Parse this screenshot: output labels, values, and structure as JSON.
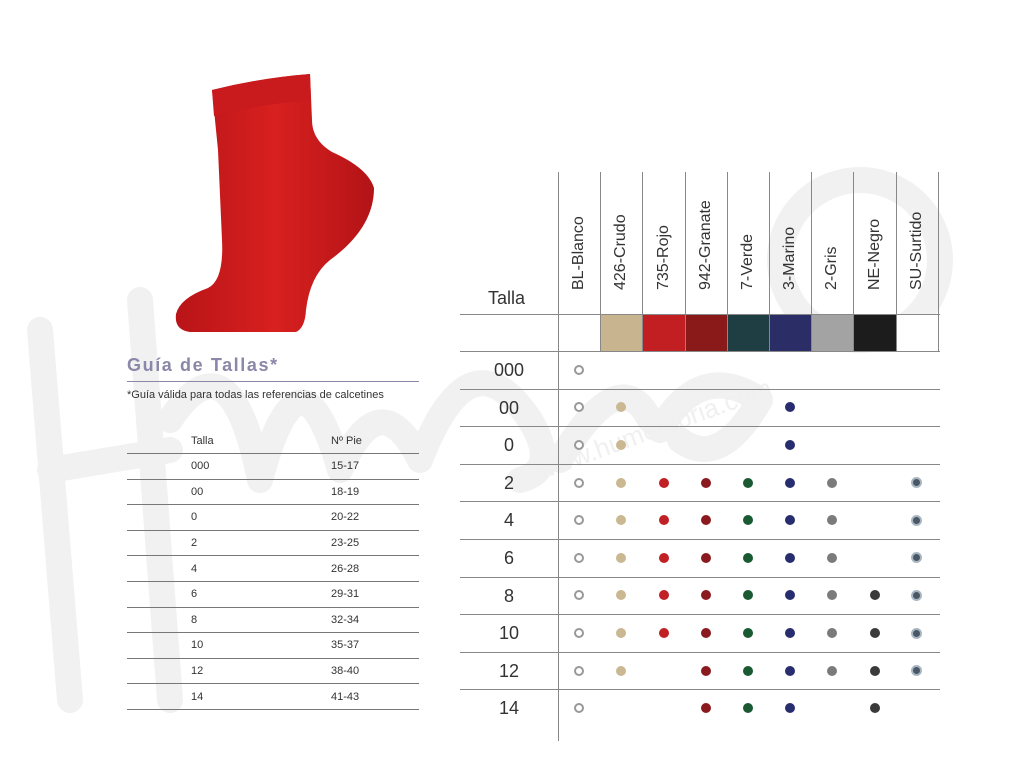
{
  "guide": {
    "title": "Guía de Tallas*",
    "note": "*Guía válida para todas las referencias de calcetines"
  },
  "size_table": {
    "headers": [
      "Talla",
      "Nº Pie"
    ],
    "rows": [
      [
        "000",
        "15-17"
      ],
      [
        "00",
        "18-19"
      ],
      [
        "0",
        "20-22"
      ],
      [
        "2",
        "23-25"
      ],
      [
        "4",
        "26-28"
      ],
      [
        "6",
        "29-31"
      ],
      [
        "8",
        "32-34"
      ],
      [
        "10",
        "35-37"
      ],
      [
        "12",
        "38-40"
      ],
      [
        "14",
        "41-43"
      ]
    ]
  },
  "color_table": {
    "talla_label": "Talla",
    "columns": [
      {
        "label": "BL-Blanco",
        "color": "#ffffff",
        "dot": "ring"
      },
      {
        "label": "426-Crudo",
        "color": "#c8b48e",
        "dot": "#c9b891"
      },
      {
        "label": "735-Rojo",
        "color": "#c11f22",
        "dot": "#c12025"
      },
      {
        "label": "942-Granate",
        "color": "#8a1a1a",
        "dot": "#8b1a1e"
      },
      {
        "label": "7-Verde",
        "color": "#1f3e44",
        "dot": "#1a5a32"
      },
      {
        "label": "3-Marino",
        "color": "#2a2d66",
        "dot": "#272d6e"
      },
      {
        "label": "2-Gris",
        "color": "#a3a3a3",
        "dot": "#7b7b7b"
      },
      {
        "label": "NE-Negro",
        "color": "#1c1c1c",
        "dot": "#3a3a3a"
      },
      {
        "label": "SU-Surtido",
        "color": "#ffffff",
        "dot": "assorted"
      }
    ],
    "rows": [
      {
        "size": "000",
        "avail": [
          1,
          0,
          0,
          0,
          0,
          0,
          0,
          0,
          0
        ]
      },
      {
        "size": "00",
        "avail": [
          1,
          1,
          0,
          0,
          0,
          1,
          0,
          0,
          0
        ]
      },
      {
        "size": "0",
        "avail": [
          1,
          1,
          0,
          0,
          0,
          1,
          0,
          0,
          0
        ]
      },
      {
        "size": "2",
        "avail": [
          1,
          1,
          1,
          1,
          1,
          1,
          1,
          0,
          1
        ]
      },
      {
        "size": "4",
        "avail": [
          1,
          1,
          1,
          1,
          1,
          1,
          1,
          0,
          1
        ]
      },
      {
        "size": "6",
        "avail": [
          1,
          1,
          1,
          1,
          1,
          1,
          1,
          0,
          1
        ]
      },
      {
        "size": "8",
        "avail": [
          1,
          1,
          1,
          1,
          1,
          1,
          1,
          1,
          1
        ]
      },
      {
        "size": "10",
        "avail": [
          1,
          1,
          1,
          1,
          1,
          1,
          1,
          1,
          1
        ]
      },
      {
        "size": "12",
        "avail": [
          1,
          1,
          0,
          1,
          1,
          1,
          1,
          1,
          1
        ]
      },
      {
        "size": "14",
        "avail": [
          1,
          0,
          0,
          1,
          1,
          1,
          0,
          1,
          0
        ]
      }
    ]
  },
  "watermark": {
    "text": "www.humercoria.com"
  }
}
